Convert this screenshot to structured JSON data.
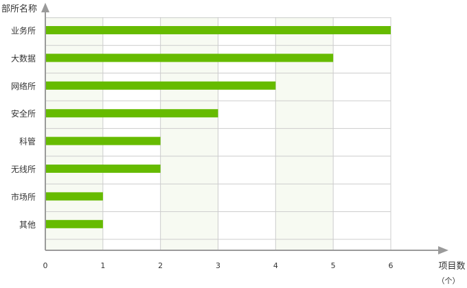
{
  "chart_data": {
    "type": "bar",
    "orientation": "horizontal",
    "ylabel": "部所名称",
    "xlabel": "项目数",
    "xunit": "（个）",
    "categories": [
      "业务所",
      "大数据",
      "网络所",
      "安全所",
      "科管",
      "无线所",
      "市场所",
      "其他"
    ],
    "values": [
      6,
      5,
      4,
      3,
      2,
      2,
      1,
      1
    ],
    "xlim": [
      0,
      6
    ],
    "xticks": [
      "0",
      "1",
      "2",
      "3",
      "4",
      "5",
      "6"
    ],
    "grid": true,
    "colors": {
      "bar": "#66bb00",
      "grid": "#cccccc",
      "band": "#f7faf2",
      "axis": "#9a9a9a"
    }
  }
}
